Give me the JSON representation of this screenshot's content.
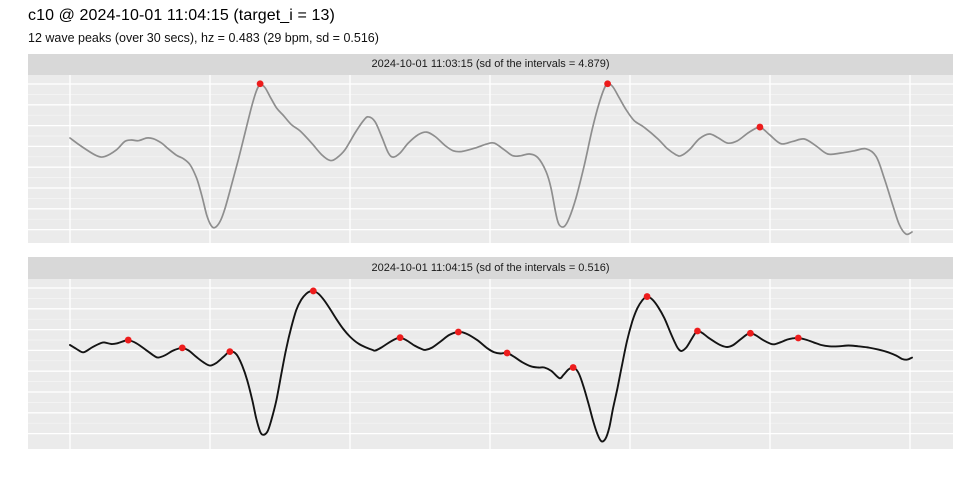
{
  "header": {
    "title": "c10 @ 2024-10-01 11:04:15 (target_i = 13)",
    "subtitle": "12 wave peaks (over 30 secs), hz = 0.483 (29 bpm, sd = 0.516)"
  },
  "colors": {
    "panel_bg": "#ebebeb",
    "strip_bg": "#d8d8d8",
    "grid_major": "#ffffff",
    "grid_minor": "rgba(255,255,255,0.55)",
    "peak_marker": "#ed1c1c",
    "wave_gray": "#8e8e8e",
    "wave_black": "#141414"
  },
  "chart_data": [
    {
      "type": "line",
      "facet_label": "2024-10-01 11:03:15 (sd of the intervals = 4.879)",
      "series_name": "previous-window-wave",
      "line_color": "#8e8e8e",
      "line_width": 1.7,
      "x_units": "seconds",
      "x_range": [
        0,
        30
      ],
      "x_gridlines_sec": [
        0,
        5,
        10,
        15,
        20,
        25,
        30
      ],
      "y_units": "normalized amplitude (no y-axis labels shown; 0 = panel top, 1 = panel bottom)",
      "grid": "ggplot-style white on gray",
      "legend": "none",
      "points": [
        [
          0,
          0.374
        ],
        [
          0.41,
          0.424
        ],
        [
          0.95,
          0.479
        ],
        [
          1.25,
          0.483
        ],
        [
          1.66,
          0.444
        ],
        [
          1.96,
          0.394
        ],
        [
          2.2,
          0.386
        ],
        [
          2.44,
          0.39
        ],
        [
          2.74,
          0.374
        ],
        [
          2.97,
          0.378
        ],
        [
          3.27,
          0.404
        ],
        [
          3.51,
          0.438
        ],
        [
          3.81,
          0.477
        ],
        [
          4.05,
          0.497
        ],
        [
          4.29,
          0.533
        ],
        [
          4.52,
          0.612
        ],
        [
          4.7,
          0.711
        ],
        [
          4.88,
          0.829
        ],
        [
          5.04,
          0.893
        ],
        [
          5.18,
          0.905
        ],
        [
          5.36,
          0.869
        ],
        [
          5.54,
          0.79
        ],
        [
          5.77,
          0.651
        ],
        [
          6.01,
          0.503
        ],
        [
          6.25,
          0.344
        ],
        [
          6.49,
          0.186
        ],
        [
          6.66,
          0.093
        ],
        [
          6.79,
          0.058
        ],
        [
          6.96,
          0.074
        ],
        [
          7.14,
          0.127
        ],
        [
          7.38,
          0.196
        ],
        [
          7.62,
          0.24
        ],
        [
          7.91,
          0.295
        ],
        [
          8.21,
          0.331
        ],
        [
          8.63,
          0.404
        ],
        [
          8.99,
          0.473
        ],
        [
          9.29,
          0.507
        ],
        [
          9.52,
          0.493
        ],
        [
          9.82,
          0.444
        ],
        [
          10.18,
          0.344
        ],
        [
          10.48,
          0.271
        ],
        [
          10.65,
          0.248
        ],
        [
          10.89,
          0.276
        ],
        [
          11.13,
          0.365
        ],
        [
          11.37,
          0.463
        ],
        [
          11.55,
          0.487
        ],
        [
          11.79,
          0.463
        ],
        [
          12.08,
          0.404
        ],
        [
          12.44,
          0.354
        ],
        [
          12.74,
          0.339
        ],
        [
          13.04,
          0.365
        ],
        [
          13.39,
          0.418
        ],
        [
          13.69,
          0.45
        ],
        [
          13.99,
          0.454
        ],
        [
          14.46,
          0.434
        ],
        [
          14.88,
          0.41
        ],
        [
          15.15,
          0.404
        ],
        [
          15.51,
          0.444
        ],
        [
          15.81,
          0.479
        ],
        [
          16.11,
          0.479
        ],
        [
          16.4,
          0.469
        ],
        [
          16.7,
          0.489
        ],
        [
          17,
          0.572
        ],
        [
          17.18,
          0.671
        ],
        [
          17.36,
          0.829
        ],
        [
          17.47,
          0.889
        ],
        [
          17.65,
          0.899
        ],
        [
          17.83,
          0.849
        ],
        [
          18.07,
          0.73
        ],
        [
          18.37,
          0.533
        ],
        [
          18.66,
          0.315
        ],
        [
          18.9,
          0.166
        ],
        [
          19.08,
          0.081
        ],
        [
          19.2,
          0.053
        ],
        [
          19.38,
          0.068
        ],
        [
          19.62,
          0.137
        ],
        [
          19.86,
          0.206
        ],
        [
          20.15,
          0.271
        ],
        [
          20.51,
          0.311
        ],
        [
          20.99,
          0.378
        ],
        [
          21.34,
          0.438
        ],
        [
          21.64,
          0.473
        ],
        [
          21.82,
          0.479
        ],
        [
          22.12,
          0.444
        ],
        [
          22.48,
          0.378
        ],
        [
          22.83,
          0.35
        ],
        [
          23.13,
          0.371
        ],
        [
          23.49,
          0.404
        ],
        [
          23.84,
          0.39
        ],
        [
          24.26,
          0.339
        ],
        [
          24.64,
          0.311
        ],
        [
          24.98,
          0.354
        ],
        [
          25.39,
          0.408
        ],
        [
          25.81,
          0.394
        ],
        [
          26.23,
          0.38
        ],
        [
          26.64,
          0.42
        ],
        [
          27.06,
          0.469
        ],
        [
          27.54,
          0.463
        ],
        [
          28.01,
          0.45
        ],
        [
          28.43,
          0.438
        ],
        [
          28.79,
          0.483
        ],
        [
          29.08,
          0.612
        ],
        [
          29.38,
          0.77
        ],
        [
          29.62,
          0.889
        ],
        [
          29.86,
          0.944
        ],
        [
          30.07,
          0.932
        ]
      ],
      "peak_markers": [
        [
          6.79,
          0.052
        ],
        [
          19.2,
          0.052
        ],
        [
          24.64,
          0.309
        ]
      ],
      "peak_marker_radius": 3.4
    },
    {
      "type": "line",
      "facet_label": "2024-10-01 11:04:15 (sd of the intervals = 0.516)",
      "series_name": "target-window-wave",
      "line_color": "#141414",
      "line_width": 1.9,
      "x_units": "seconds",
      "x_range": [
        0,
        30
      ],
      "x_gridlines_sec": [
        0,
        5,
        10,
        15,
        20,
        25,
        30
      ],
      "y_units": "normalized amplitude (no y-axis labels shown; 0 = panel top, 1 = panel bottom)",
      "grid": "ggplot-style white on gray",
      "legend": "none",
      "points": [
        [
          0,
          0.387
        ],
        [
          0.23,
          0.41
        ],
        [
          0.48,
          0.43
        ],
        [
          0.8,
          0.4
        ],
        [
          1.12,
          0.375
        ],
        [
          1.25,
          0.373
        ],
        [
          1.48,
          0.381
        ],
        [
          1.69,
          0.377
        ],
        [
          1.94,
          0.363
        ],
        [
          2.08,
          0.358
        ],
        [
          2.37,
          0.377
        ],
        [
          2.73,
          0.418
        ],
        [
          2.99,
          0.449
        ],
        [
          3.15,
          0.461
        ],
        [
          3.4,
          0.447
        ],
        [
          3.65,
          0.422
        ],
        [
          3.87,
          0.408
        ],
        [
          4.01,
          0.404
        ],
        [
          4.23,
          0.418
        ],
        [
          4.51,
          0.457
        ],
        [
          4.76,
          0.488
        ],
        [
          5,
          0.508
        ],
        [
          5.23,
          0.492
        ],
        [
          5.48,
          0.457
        ],
        [
          5.71,
          0.426
        ],
        [
          5.94,
          0.441
        ],
        [
          6.15,
          0.508
        ],
        [
          6.33,
          0.594
        ],
        [
          6.51,
          0.711
        ],
        [
          6.65,
          0.817
        ],
        [
          6.79,
          0.895
        ],
        [
          6.9,
          0.914
        ],
        [
          7.05,
          0.895
        ],
        [
          7.19,
          0.828
        ],
        [
          7.37,
          0.711
        ],
        [
          7.55,
          0.555
        ],
        [
          7.72,
          0.41
        ],
        [
          7.9,
          0.285
        ],
        [
          8.08,
          0.183
        ],
        [
          8.26,
          0.121
        ],
        [
          8.44,
          0.086
        ],
        [
          8.58,
          0.072
        ],
        [
          8.69,
          0.07
        ],
        [
          8.87,
          0.086
        ],
        [
          9.08,
          0.125
        ],
        [
          9.3,
          0.179
        ],
        [
          9.51,
          0.234
        ],
        [
          9.76,
          0.293
        ],
        [
          10.01,
          0.34
        ],
        [
          10.3,
          0.379
        ],
        [
          10.58,
          0.402
        ],
        [
          10.8,
          0.416
        ],
        [
          10.9,
          0.42
        ],
        [
          11.12,
          0.402
        ],
        [
          11.37,
          0.375
        ],
        [
          11.62,
          0.352
        ],
        [
          11.79,
          0.344
        ],
        [
          12.01,
          0.359
        ],
        [
          12.3,
          0.39
        ],
        [
          12.55,
          0.41
        ],
        [
          12.69,
          0.416
        ],
        [
          12.94,
          0.402
        ],
        [
          13.23,
          0.367
        ],
        [
          13.55,
          0.328
        ],
        [
          13.87,
          0.311
        ],
        [
          14.15,
          0.32
        ],
        [
          14.55,
          0.359
        ],
        [
          14.9,
          0.406
        ],
        [
          15.15,
          0.43
        ],
        [
          15.37,
          0.437
        ],
        [
          15.61,
          0.434
        ],
        [
          15.87,
          0.457
        ],
        [
          16.15,
          0.488
        ],
        [
          16.46,
          0.512
        ],
        [
          16.73,
          0.519
        ],
        [
          16.94,
          0.519
        ],
        [
          17.19,
          0.539
        ],
        [
          17.48,
          0.582
        ],
        [
          17.62,
          0.563
        ],
        [
          17.8,
          0.531
        ],
        [
          17.97,
          0.519
        ],
        [
          18.15,
          0.547
        ],
        [
          18.33,
          0.625
        ],
        [
          18.51,
          0.727
        ],
        [
          18.69,
          0.836
        ],
        [
          18.83,
          0.906
        ],
        [
          18.97,
          0.951
        ],
        [
          19.12,
          0.938
        ],
        [
          19.26,
          0.871
        ],
        [
          19.4,
          0.754
        ],
        [
          19.55,
          0.642
        ],
        [
          19.72,
          0.5
        ],
        [
          19.9,
          0.359
        ],
        [
          20.08,
          0.25
        ],
        [
          20.26,
          0.172
        ],
        [
          20.44,
          0.125
        ],
        [
          20.61,
          0.103
        ],
        [
          20.8,
          0.121
        ],
        [
          21.01,
          0.166
        ],
        [
          21.23,
          0.23
        ],
        [
          21.44,
          0.312
        ],
        [
          21.62,
          0.379
        ],
        [
          21.73,
          0.41
        ],
        [
          21.84,
          0.422
        ],
        [
          22.01,
          0.402
        ],
        [
          22.19,
          0.355
        ],
        [
          22.33,
          0.318
        ],
        [
          22.41,
          0.305
        ],
        [
          22.58,
          0.316
        ],
        [
          22.8,
          0.344
        ],
        [
          23.05,
          0.371
        ],
        [
          23.26,
          0.39
        ],
        [
          23.48,
          0.399
        ],
        [
          23.69,
          0.387
        ],
        [
          23.94,
          0.355
        ],
        [
          24.15,
          0.328
        ],
        [
          24.3,
          0.318
        ],
        [
          24.51,
          0.332
        ],
        [
          24.76,
          0.359
        ],
        [
          25.01,
          0.379
        ],
        [
          25.15,
          0.383
        ],
        [
          25.37,
          0.371
        ],
        [
          25.62,
          0.355
        ],
        [
          25.83,
          0.348
        ],
        [
          26.01,
          0.346
        ],
        [
          26.26,
          0.355
        ],
        [
          26.55,
          0.371
        ],
        [
          26.83,
          0.387
        ],
        [
          27.12,
          0.395
        ],
        [
          27.44,
          0.395
        ],
        [
          27.8,
          0.39
        ],
        [
          28.15,
          0.395
        ],
        [
          28.51,
          0.402
        ],
        [
          28.87,
          0.414
        ],
        [
          29.22,
          0.43
        ],
        [
          29.51,
          0.449
        ],
        [
          29.72,
          0.469
        ],
        [
          29.9,
          0.473
        ],
        [
          30.07,
          0.461
        ]
      ],
      "peak_markers": [
        [
          2.08,
          0.358
        ],
        [
          4.01,
          0.404
        ],
        [
          5.71,
          0.426
        ],
        [
          8.69,
          0.07
        ],
        [
          11.79,
          0.344
        ],
        [
          13.87,
          0.311
        ],
        [
          15.61,
          0.434
        ],
        [
          17.97,
          0.519
        ],
        [
          20.61,
          0.103
        ],
        [
          22.41,
          0.305
        ],
        [
          24.3,
          0.318
        ],
        [
          26.01,
          0.346
        ]
      ],
      "peak_marker_radius": 3.4
    }
  ]
}
